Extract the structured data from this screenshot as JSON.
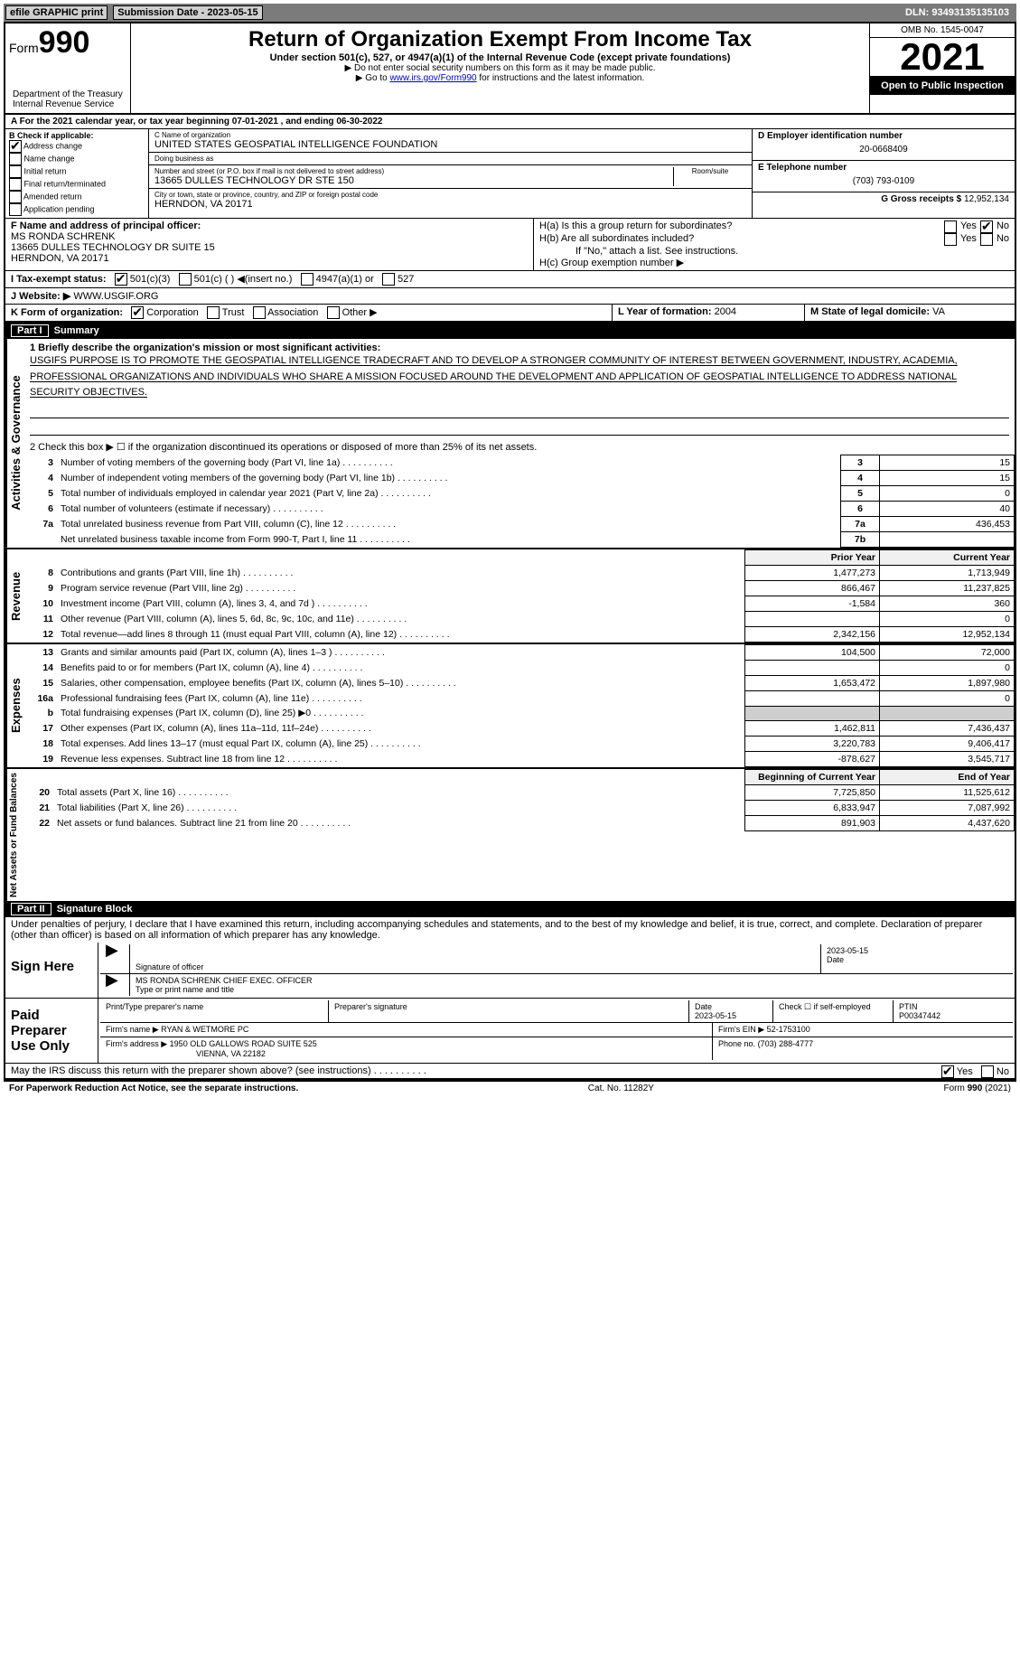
{
  "topbar": {
    "efile": "efile GRAPHIC print",
    "submit": "Submission Date - 2023-05-15",
    "dln": "DLN: 93493135135103"
  },
  "header": {
    "form_label": "Form",
    "form_no": "990",
    "title": "Return of Organization Exempt From Income Tax",
    "subtitle": "Under section 501(c), 527, or 4947(a)(1) of the Internal Revenue Code (except private foundations)",
    "note1": "▶ Do not enter social security numbers on this form as it may be made public.",
    "note2_pre": "▶ Go to ",
    "note2_link": "www.irs.gov/Form990",
    "note2_post": " for instructions and the latest information.",
    "dept": "Department of the Treasury Internal Revenue Service",
    "omb": "OMB No. 1545-0047",
    "year": "2021",
    "open": "Open to Public Inspection"
  },
  "a_line": "A For the 2021 calendar year, or tax year beginning 07-01-2021    , and ending 06-30-2022",
  "section_b": {
    "label": "B Check if applicable:",
    "items": [
      "Address change",
      "Name change",
      "Initial return",
      "Final return/terminated",
      "Amended return",
      "Application pending"
    ],
    "checked_idx": 0
  },
  "section_c": {
    "name_lbl": "C Name of organization",
    "name": "UNITED STATES GEOSPATIAL INTELLIGENCE FOUNDATION",
    "dba_lbl": "Doing business as",
    "dba": "",
    "addr_lbl": "Number and street (or P.O. box if mail is not delivered to street address)",
    "room_lbl": "Room/suite",
    "addr": "13665 DULLES TECHNOLOGY DR STE 150",
    "city_lbl": "City or town, state or province, country, and ZIP or foreign postal code",
    "city": "HERNDON, VA  20171"
  },
  "section_d": {
    "ein_lbl": "D Employer identification number",
    "ein": "20-0668409",
    "phone_lbl": "E Telephone number",
    "phone": "(703) 793-0109",
    "gross_lbl": "G Gross receipts $",
    "gross": "12,952,134"
  },
  "section_f": {
    "lbl": "F Name and address of principal officer:",
    "name": "MS RONDA SCHRENK",
    "addr": "13665 DULLES TECHNOLOGY DR SUITE 15",
    "city": "HERNDON, VA  20171"
  },
  "section_h": {
    "ha": "H(a)  Is this a group return for subordinates?",
    "ha_no": true,
    "hb": "H(b)  Are all subordinates included?",
    "hb_note": "If \"No,\" attach a list. See instructions.",
    "hc": "H(c)  Group exemption number ▶"
  },
  "section_i": {
    "lbl": "I   Tax-exempt status:",
    "opts": [
      "501(c)(3)",
      "501(c) (  ) ◀(insert no.)",
      "4947(a)(1) or",
      "527"
    ],
    "checked_idx": 0
  },
  "section_j": {
    "lbl": "J   Website: ▶",
    "val": "WWW.USGIF.ORG"
  },
  "section_k": {
    "lbl": "K Form of organization:",
    "opts": [
      "Corporation",
      "Trust",
      "Association",
      "Other ▶"
    ],
    "checked_idx": 0
  },
  "section_l": {
    "lbl": "L Year of formation:",
    "val": "2004"
  },
  "section_m": {
    "lbl": "M State of legal domicile:",
    "val": "VA"
  },
  "part1": {
    "label": "Part I",
    "title": "Summary",
    "line1_lbl": "1  Briefly describe the organization's mission or most significant activities:",
    "mission": "USGIFS PURPOSE IS TO PROMOTE THE GEOSPATIAL INTELLIGENCE TRADECRAFT AND TO DEVELOP A STRONGER COMMUNITY OF INTEREST BETWEEN GOVERNMENT, INDUSTRY, ACADEMIA, PROFESSIONAL ORGANIZATIONS AND INDIVIDUALS WHO SHARE A MISSION FOCUSED AROUND THE DEVELOPMENT AND APPLICATION OF GEOSPATIAL INTELLIGENCE TO ADDRESS NATIONAL SECURITY OBJECTIVES.",
    "line2": "2   Check this box ▶ ☐ if the organization discontinued its operations or disposed of more than 25% of its net assets."
  },
  "side_labels": {
    "gov": "Activities & Governance",
    "rev": "Revenue",
    "exp": "Expenses",
    "net": "Net Assets or Fund Balances"
  },
  "gov_rows": [
    {
      "n": "3",
      "d": "Number of voting members of the governing body (Part VI, line 1a)",
      "b": "3",
      "v": "15"
    },
    {
      "n": "4",
      "d": "Number of independent voting members of the governing body (Part VI, line 1b)",
      "b": "4",
      "v": "15"
    },
    {
      "n": "5",
      "d": "Total number of individuals employed in calendar year 2021 (Part V, line 2a)",
      "b": "5",
      "v": "0"
    },
    {
      "n": "6",
      "d": "Total number of volunteers (estimate if necessary)",
      "b": "6",
      "v": "40"
    },
    {
      "n": "7a",
      "d": "Total unrelated business revenue from Part VIII, column (C), line 12",
      "b": "7a",
      "v": "436,453"
    },
    {
      "n": "",
      "d": "Net unrelated business taxable income from Form 990-T, Part I, line 11",
      "b": "7b",
      "v": ""
    }
  ],
  "col_hdrs": {
    "prior": "Prior Year",
    "current": "Current Year"
  },
  "rev_rows": [
    {
      "n": "8",
      "d": "Contributions and grants (Part VIII, line 1h)",
      "p": "1,477,273",
      "c": "1,713,949"
    },
    {
      "n": "9",
      "d": "Program service revenue (Part VIII, line 2g)",
      "p": "866,467",
      "c": "11,237,825"
    },
    {
      "n": "10",
      "d": "Investment income (Part VIII, column (A), lines 3, 4, and 7d )",
      "p": "-1,584",
      "c": "360"
    },
    {
      "n": "11",
      "d": "Other revenue (Part VIII, column (A), lines 5, 6d, 8c, 9c, 10c, and 11e)",
      "p": "",
      "c": "0"
    },
    {
      "n": "12",
      "d": "Total revenue—add lines 8 through 11 (must equal Part VIII, column (A), line 12)",
      "p": "2,342,156",
      "c": "12,952,134"
    }
  ],
  "exp_rows": [
    {
      "n": "13",
      "d": "Grants and similar amounts paid (Part IX, column (A), lines 1–3 )",
      "p": "104,500",
      "c": "72,000"
    },
    {
      "n": "14",
      "d": "Benefits paid to or for members (Part IX, column (A), line 4)",
      "p": "",
      "c": "0"
    },
    {
      "n": "15",
      "d": "Salaries, other compensation, employee benefits (Part IX, column (A), lines 5–10)",
      "p": "1,653,472",
      "c": "1,897,980"
    },
    {
      "n": "16a",
      "d": "Professional fundraising fees (Part IX, column (A), line 11e)",
      "p": "",
      "c": "0"
    },
    {
      "n": "b",
      "d": "Total fundraising expenses (Part IX, column (D), line 25) ▶0",
      "p": "GRAY",
      "c": "GRAY"
    },
    {
      "n": "17",
      "d": "Other expenses (Part IX, column (A), lines 11a–11d, 11f–24e)",
      "p": "1,462,811",
      "c": "7,436,437"
    },
    {
      "n": "18",
      "d": "Total expenses. Add lines 13–17 (must equal Part IX, column (A), line 25)",
      "p": "3,220,783",
      "c": "9,406,417"
    },
    {
      "n": "19",
      "d": "Revenue less expenses. Subtract line 18 from line 12",
      "p": "-878,627",
      "c": "3,545,717"
    }
  ],
  "net_hdrs": {
    "beg": "Beginning of Current Year",
    "end": "End of Year"
  },
  "net_rows": [
    {
      "n": "20",
      "d": "Total assets (Part X, line 16)",
      "p": "7,725,850",
      "c": "11,525,612"
    },
    {
      "n": "21",
      "d": "Total liabilities (Part X, line 26)",
      "p": "6,833,947",
      "c": "7,087,992"
    },
    {
      "n": "22",
      "d": "Net assets or fund balances. Subtract line 21 from line 20",
      "p": "891,903",
      "c": "4,437,620"
    }
  ],
  "part2": {
    "label": "Part II",
    "title": "Signature Block",
    "decl": "Under penalties of perjury, I declare that I have examined this return, including accompanying schedules and statements, and to the best of my knowledge and belief, it is true, correct, and complete. Declaration of preparer (other than officer) is based on all information of which preparer has any knowledge."
  },
  "sign": {
    "here": "Sign Here",
    "sig_lbl": "Signature of officer",
    "date_lbl": "Date",
    "date": "2023-05-15",
    "name": "MS RONDA SCHRENK  CHIEF EXEC. OFFICER",
    "name_lbl": "Type or print name and title"
  },
  "preparer": {
    "label": "Paid Preparer Use Only",
    "pname_lbl": "Print/Type preparer's name",
    "pname": "",
    "psig_lbl": "Preparer's signature",
    "pdate_lbl": "Date",
    "pdate": "2023-05-15",
    "check_lbl": "Check ☐ if self-employed",
    "ptin_lbl": "PTIN",
    "ptin": "P00347442",
    "firm_lbl": "Firm's name    ▶",
    "firm": "RYAN & WETMORE PC",
    "ein_lbl": "Firm's EIN ▶",
    "ein": "52-1753100",
    "addr_lbl": "Firm's address ▶",
    "addr": "1950 OLD GALLOWS ROAD SUITE 525",
    "addr2": "VIENNA, VA  22182",
    "phone_lbl": "Phone no.",
    "phone": "(703) 288-4777"
  },
  "discuss": {
    "q": "May the IRS discuss this return with the preparer shown above? (see instructions)",
    "yes_checked": true
  },
  "footer": {
    "l": "For Paperwork Reduction Act Notice, see the separate instructions.",
    "c": "Cat. No. 11282Y",
    "r": "Form 990 (2021)"
  }
}
